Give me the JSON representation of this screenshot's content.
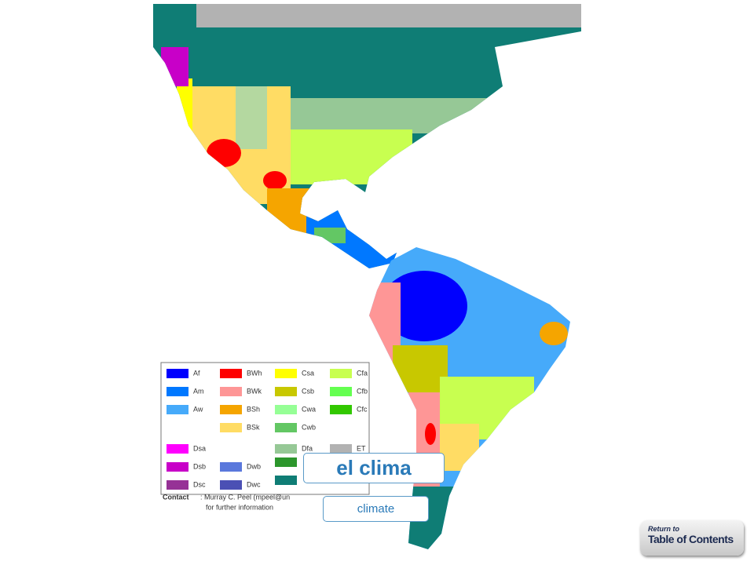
{
  "map": {
    "legend_columns": [
      [
        {
          "code": "Af",
          "color": "#0000fe"
        },
        {
          "code": "Am",
          "color": "#0078ff"
        },
        {
          "code": "Aw",
          "color": "#46aafa"
        },
        null,
        {
          "code": "Dsa",
          "color": "#ff00fe"
        },
        {
          "code": "Dsb",
          "color": "#c800c8"
        },
        {
          "code": "Dsc",
          "color": "#963296"
        }
      ],
      [
        {
          "code": "BWh",
          "color": "#fe0000"
        },
        {
          "code": "BWk",
          "color": "#fe9696"
        },
        {
          "code": "BSh",
          "color": "#f5a500"
        },
        {
          "code": "BSk",
          "color": "#ffdc64"
        },
        null,
        {
          "code": "Dwb",
          "color": "#5a78dc"
        },
        {
          "code": "Dwc",
          "color": "#4b50b4"
        }
      ],
      [
        {
          "code": "Csa",
          "color": "#ffff00"
        },
        {
          "code": "Csb",
          "color": "#c8c800"
        },
        {
          "code": "Cwa",
          "color": "#96ff96"
        },
        {
          "code": "Cwb",
          "color": "#63c764"
        },
        {
          "code": "Dfa",
          "color": "#96c896"
        }
      ],
      [
        {
          "code": "Cfa",
          "color": "#c8ff50"
        },
        {
          "code": "Cfb",
          "color": "#64ff50"
        },
        {
          "code": "Cfc",
          "color": "#32c800"
        },
        null,
        {
          "code": "ET",
          "color": "#b2b2b2"
        }
      ]
    ],
    "contact_label": "Contact",
    "contact_text": ": Murray C. Peel (mpeel@un",
    "contact_note": "for further information"
  },
  "term": "el clima",
  "translation": "climate",
  "button": {
    "line1": "Return to",
    "line2": "Table of Contents"
  }
}
